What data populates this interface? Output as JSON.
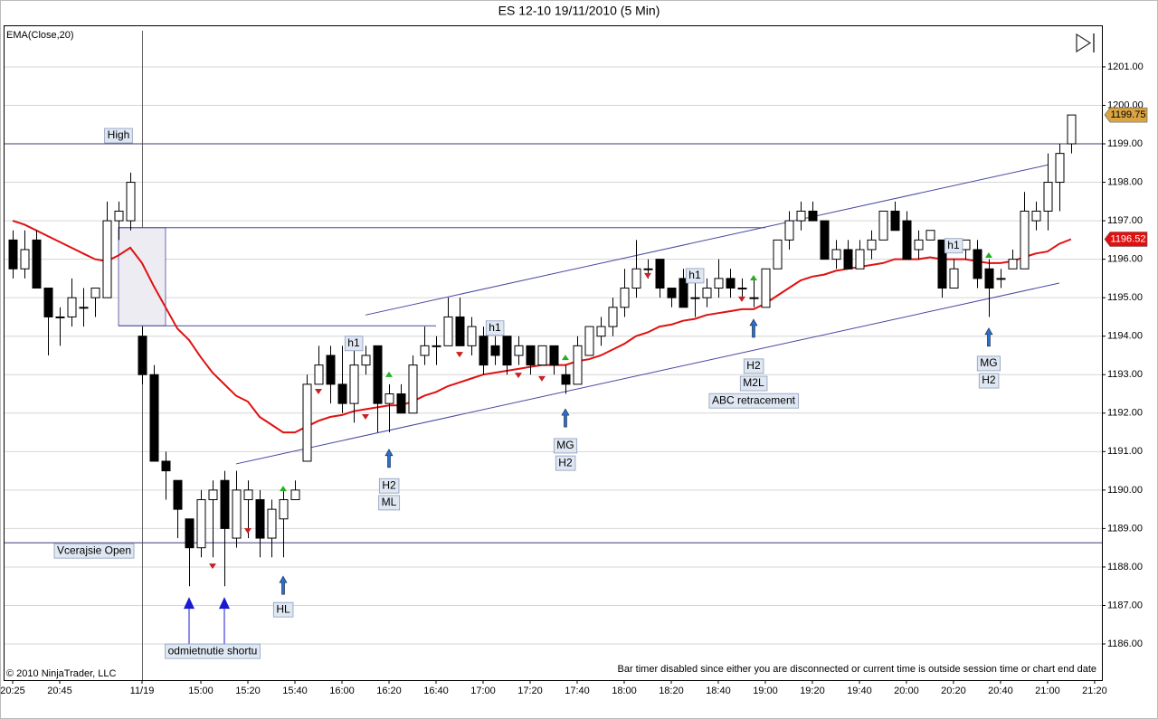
{
  "chart_data": {
    "type": "candlestick",
    "title": "ES 12-10  19/11/2010 (5 Min)",
    "copyright": "© 2010 NinjaTrader, LLC",
    "status_note": "Bar timer disabled since either you are disconnected or current time is outside session time or chart end date",
    "xlim": [
      -0.77,
      92.62
    ],
    "xticks": [
      {
        "value": 0,
        "label": "20:25"
      },
      {
        "value": 4,
        "label": "20:45"
      },
      {
        "value": 11,
        "label": "11/19"
      },
      {
        "value": 16,
        "label": "15:00"
      },
      {
        "value": 20,
        "label": "15:20"
      },
      {
        "value": 24,
        "label": "15:40"
      },
      {
        "value": 28,
        "label": "16:00"
      },
      {
        "value": 32,
        "label": "16:20"
      },
      {
        "value": 36,
        "label": "16:40"
      },
      {
        "value": 40,
        "label": "17:00"
      },
      {
        "value": 44,
        "label": "17:20"
      },
      {
        "value": 48,
        "label": "17:40"
      },
      {
        "value": 52,
        "label": "18:00"
      },
      {
        "value": 56,
        "label": "18:20"
      },
      {
        "value": 60,
        "label": "18:40"
      },
      {
        "value": 64,
        "label": "19:00"
      },
      {
        "value": 68,
        "label": "19:20"
      },
      {
        "value": 72,
        "label": "19:40"
      },
      {
        "value": 76,
        "label": "20:00"
      },
      {
        "value": 80,
        "label": "20:20"
      },
      {
        "value": 84,
        "label": "20:40"
      },
      {
        "value": 88,
        "label": "21:00"
      },
      {
        "value": 92,
        "label": "21:20"
      }
    ],
    "ylim": [
      1185.06,
      1202.08
    ],
    "yticks": [
      {
        "value": 1186,
        "label": "1186.00"
      },
      {
        "value": 1187,
        "label": "1187.00"
      },
      {
        "value": 1188,
        "label": "1188.00"
      },
      {
        "value": 1189,
        "label": "1189.00"
      },
      {
        "value": 1190,
        "label": "1190.00"
      },
      {
        "value": 1191,
        "label": "1191.00"
      },
      {
        "value": 1192,
        "label": "1192.00"
      },
      {
        "value": 1193,
        "label": "1193.00"
      },
      {
        "value": 1194,
        "label": "1194.00"
      },
      {
        "value": 1195,
        "label": "1195.00"
      },
      {
        "value": 1196,
        "label": "1196.00"
      },
      {
        "value": 1197,
        "label": "1197.00"
      },
      {
        "value": 1198,
        "label": "1198.00"
      },
      {
        "value": 1199,
        "label": "1199.00"
      },
      {
        "value": 1200,
        "label": "1200.00"
      },
      {
        "value": 1201,
        "label": "1201.00"
      }
    ],
    "grid": true,
    "series": [
      {
        "up_color": "#ffffff",
        "down_color": "#000000",
        "last_color": "#d9a441",
        "open": [
          1196.5,
          1195.75,
          1196.5,
          1195.25,
          1194.5,
          1194.5,
          1194.75,
          1195,
          1195,
          1197,
          1197,
          1194,
          1193,
          1190.75,
          1190.25,
          1189.25,
          1188.5,
          1189.75,
          1190.25,
          1188.75,
          1189.75,
          1189.75,
          1188.75,
          1189.25,
          1189.75,
          1190.75,
          1192.75,
          1193.5,
          1192.75,
          1192.25,
          1193.25,
          1193.75,
          1192.25,
          1192.5,
          1192,
          1193.5,
          1193.75,
          1193.75,
          1194.5,
          1193.75,
          1194,
          1193.75,
          1194,
          1193.5,
          1193.75,
          1193.25,
          1193.75,
          1193,
          1192.75,
          1193.5,
          1194,
          1194.25,
          1194.75,
          1195.25,
          1195.75,
          1196,
          1195.25,
          1195.5,
          1195,
          1195,
          1195.25,
          1195.5,
          1195.25,
          1195,
          1194.75,
          1195.75,
          1196.5,
          1197,
          1197.25,
          1197,
          1196,
          1196.25,
          1195.75,
          1196.25,
          1196.5,
          1197.25,
          1197,
          1196.25,
          1196.5,
          1196.5,
          1195.25,
          1196.25,
          1196.25,
          1195.75,
          1195.5,
          1195.75,
          1195.75,
          1197,
          1197.25,
          1198,
          1199
        ],
        "high": [
          1196.75,
          1196.75,
          1196.75,
          1195.25,
          1194.75,
          1195.5,
          1195.25,
          1195.25,
          1197.5,
          1197.5,
          1198.25,
          1194.25,
          1193.25,
          1191,
          1190.25,
          1189.25,
          1190,
          1190.25,
          1190.5,
          1190.5,
          1190.25,
          1190,
          1189.75,
          1190,
          1190.25,
          1193,
          1193.75,
          1193.75,
          1193.75,
          1193.75,
          1193.75,
          1193.75,
          1192.75,
          1192.75,
          1193.5,
          1194.25,
          1194,
          1195,
          1195,
          1194.5,
          1194.25,
          1194,
          1194,
          1194,
          1193.75,
          1193.75,
          1193.75,
          1193.25,
          1194,
          1194.25,
          1194.5,
          1195,
          1195.75,
          1196.5,
          1196,
          1196,
          1195.25,
          1195.75,
          1195.5,
          1195.5,
          1196,
          1195.75,
          1195.5,
          1195.5,
          1195.75,
          1196.5,
          1197.25,
          1197.5,
          1197.5,
          1197,
          1196.5,
          1196.5,
          1196.5,
          1196.75,
          1197.25,
          1197.5,
          1197.25,
          1196.75,
          1196.75,
          1196.5,
          1196,
          1196.5,
          1196.5,
          1196,
          1195.75,
          1196.25,
          1197.75,
          1197.5,
          1198.75,
          1199,
          1199.75
        ],
        "low": [
          1195.5,
          1195.5,
          1195.25,
          1193.5,
          1193.75,
          1194.25,
          1194.25,
          1194.5,
          1195,
          1196.5,
          1196.75,
          1192.75,
          1190.75,
          1189.75,
          1188.75,
          1187.5,
          1188.25,
          1188.25,
          1187.5,
          1188.5,
          1188.75,
          1188.25,
          1188.25,
          1188.25,
          1189.75,
          1190.75,
          1192.75,
          1192.25,
          1192,
          1191.75,
          1193,
          1191.5,
          1191.5,
          1192,
          1192,
          1193.25,
          1193.25,
          1193.75,
          1193.75,
          1193.5,
          1193,
          1193.25,
          1193,
          1193.25,
          1193,
          1193.25,
          1193,
          1192.5,
          1192.75,
          1193.5,
          1193.75,
          1194,
          1194.5,
          1195,
          1195.5,
          1195,
          1194.75,
          1194.75,
          1194.5,
          1194.75,
          1195,
          1195,
          1195,
          1194.75,
          1194.75,
          1195.75,
          1196.25,
          1196.75,
          1197,
          1196,
          1195.75,
          1195.75,
          1195.75,
          1196,
          1196.5,
          1196.75,
          1196,
          1196,
          1196.5,
          1195,
          1195.25,
          1196,
          1195.25,
          1194.5,
          1195.25,
          1195.75,
          1195.75,
          1196.75,
          1196.75,
          1197.25,
          1198.75
        ],
        "close": [
          1195.75,
          1196.25,
          1195.25,
          1194.5,
          1194.5,
          1195,
          1194.75,
          1195.25,
          1197,
          1197.25,
          1198,
          1193,
          1190.75,
          1190.5,
          1189.5,
          1188.5,
          1189.75,
          1190,
          1189,
          1190,
          1190,
          1188.75,
          1189.5,
          1189.75,
          1190,
          1192.75,
          1193.25,
          1192.75,
          1192.25,
          1193.25,
          1193.5,
          1192.25,
          1192.5,
          1192,
          1193.25,
          1193.75,
          1193.75,
          1194.5,
          1193.75,
          1194.25,
          1193.25,
          1193.5,
          1193.25,
          1193.75,
          1193.25,
          1193.75,
          1193.25,
          1192.75,
          1193.75,
          1194.25,
          1194.25,
          1194.75,
          1195.25,
          1195.75,
          1195.75,
          1195.25,
          1195,
          1194.75,
          1195,
          1195.25,
          1195.5,
          1195.25,
          1195.25,
          1195,
          1195.75,
          1196.5,
          1197,
          1197.25,
          1197,
          1196,
          1196.25,
          1195.75,
          1196.25,
          1196.5,
          1197.25,
          1196.75,
          1196,
          1196.5,
          1196.75,
          1195.25,
          1195.75,
          1196.5,
          1195.5,
          1195.25,
          1195.5,
          1196,
          1197.25,
          1197.25,
          1198,
          1198.75,
          1199.75
        ]
      },
      {
        "name": "EMA(Close,20)",
        "color": "#e01010",
        "values": [
          1197,
          1196.9,
          1196.75,
          1196.6,
          1196.45,
          1196.3,
          1196.15,
          1196,
          1195.95,
          1196.1,
          1196.3,
          1195.9,
          1195.3,
          1194.75,
          1194.2,
          1193.9,
          1193.45,
          1193.05,
          1192.75,
          1192.45,
          1192.3,
          1191.9,
          1191.7,
          1191.5,
          1191.5,
          1191.65,
          1191.8,
          1191.9,
          1191.95,
          1192.05,
          1192.1,
          1192.15,
          1192.2,
          1192.2,
          1192.3,
          1192.45,
          1192.55,
          1192.7,
          1192.8,
          1192.9,
          1193,
          1193.05,
          1193.1,
          1193.15,
          1193.2,
          1193.25,
          1193.25,
          1193.25,
          1193.35,
          1193.4,
          1193.5,
          1193.65,
          1193.8,
          1194,
          1194.1,
          1194.25,
          1194.3,
          1194.4,
          1194.45,
          1194.55,
          1194.6,
          1194.65,
          1194.7,
          1194.7,
          1194.85,
          1195.05,
          1195.25,
          1195.45,
          1195.55,
          1195.6,
          1195.7,
          1195.75,
          1195.8,
          1195.85,
          1195.9,
          1196,
          1196,
          1196,
          1196.05,
          1196,
          1196,
          1196,
          1195.95,
          1195.9,
          1195.9,
          1195.95,
          1196.05,
          1196.15,
          1196.2,
          1196.4,
          1196.52
        ]
      }
    ],
    "level_color": "#3c3c78",
    "levels": [
      {
        "label": "High",
        "value": 1199.0
      },
      {
        "label": "Vcerajsie Open",
        "value": 1188.63
      }
    ],
    "drawing_color": "#4848a0",
    "lines": [
      {
        "from": [
          30,
          1194.55
        ],
        "to": [
          88,
          1198.45
        ]
      },
      {
        "from": [
          19,
          1190.68
        ],
        "to": [
          89,
          1195.38
        ]
      },
      {
        "from": [
          9,
          1196.82
        ],
        "to": [
          64,
          1196.82
        ]
      },
      {
        "from": [
          9,
          1194.27
        ],
        "to": [
          36,
          1194.27
        ]
      }
    ],
    "zone": {
      "bars": [
        9,
        13
      ],
      "prices": [
        1194.27,
        1196.82
      ],
      "color": "#ececf2"
    },
    "annotations": [
      {
        "text": "h1",
        "bar": 29,
        "price": 1193.81
      },
      {
        "text": "h1",
        "bar": 41,
        "price": 1194.21
      },
      {
        "text": "h1",
        "bar": 58,
        "price": 1195.57
      },
      {
        "text": "h1",
        "bar": 80,
        "price": 1196.35
      },
      {
        "text": "H2",
        "bar": 32,
        "price": 1190.11
      },
      {
        "text": "ML",
        "bar": 32,
        "price": 1189.67
      },
      {
        "text": "HL",
        "bar": 23,
        "price": 1186.89
      },
      {
        "text": "MG",
        "bar": 47,
        "price": 1191.15
      },
      {
        "text": "H2",
        "bar": 47,
        "price": 1190.7
      },
      {
        "text": "H2",
        "bar": 63,
        "price": 1193.22
      },
      {
        "text": "M2L",
        "bar": 63,
        "price": 1192.77
      },
      {
        "text": "ABC retracement",
        "bar": 63,
        "price": 1192.32
      },
      {
        "text": "MG",
        "bar": 83,
        "price": 1193.29
      },
      {
        "text": "H2",
        "bar": 83,
        "price": 1192.84
      },
      {
        "text": "odmietnutie shortu",
        "bar": 17,
        "price": 1185.81
      }
    ],
    "arrow_color": "#2a6fd0",
    "arrows": [
      {
        "bar": 23,
        "price": 1187.76
      },
      {
        "bar": 32,
        "price": 1191.06
      },
      {
        "bar": 47,
        "price": 1192.11
      },
      {
        "bar": 63,
        "price": 1194.44
      },
      {
        "bar": 83,
        "price": 1194.21
      }
    ],
    "big_arrow_color": "#1a1ad0",
    "big_arrows": [
      {
        "bar": 15,
        "price": 1187.22
      },
      {
        "bar": 18,
        "price": 1187.22
      }
    ],
    "signal_up_color": "#22b022",
    "up_signals": [
      {
        "bar": 23,
        "price": 1190.04
      },
      {
        "bar": 32,
        "price": 1193.01
      },
      {
        "bar": 47,
        "price": 1193.45
      },
      {
        "bar": 63,
        "price": 1195.52
      },
      {
        "bar": 83,
        "price": 1196.11
      }
    ],
    "signal_down_color": "#c82020",
    "down_signals": [
      {
        "bar": 17,
        "price": 1188.02
      },
      {
        "bar": 20,
        "price": 1188.94
      },
      {
        "bar": 26,
        "price": 1192.56
      },
      {
        "bar": 30,
        "price": 1191.9
      },
      {
        "bar": 38,
        "price": 1193.52
      },
      {
        "bar": 43,
        "price": 1192.98
      },
      {
        "bar": 45,
        "price": 1192.89
      },
      {
        "bar": 54,
        "price": 1195.57
      },
      {
        "bar": 62,
        "price": 1194.96
      }
    ]
  }
}
